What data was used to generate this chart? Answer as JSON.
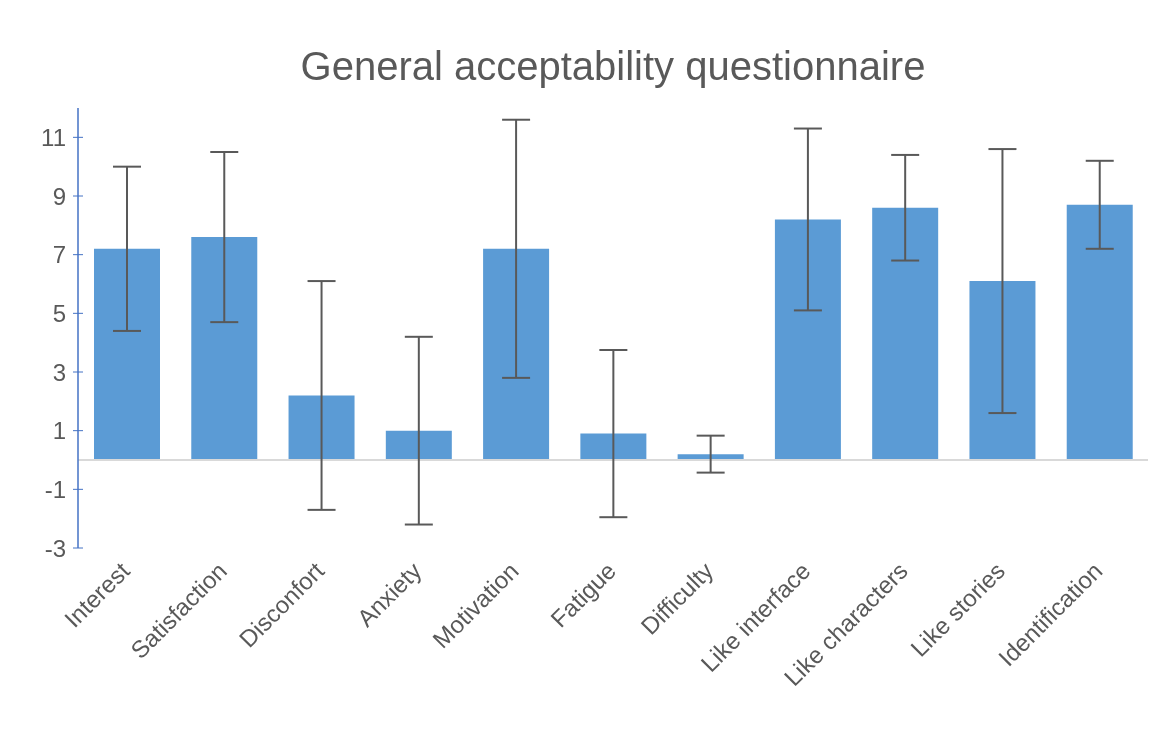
{
  "chart_data": {
    "type": "bar",
    "title": "General acceptability questionnaire",
    "categories": [
      "Interest",
      "Satisfaction",
      "Disconfort",
      "Anxiety",
      "Motivation",
      "Fatigue",
      "Difficulty",
      "Like interface",
      "Like characters",
      "Like stories",
      "Identification"
    ],
    "values": [
      7.2,
      7.6,
      2.2,
      1.0,
      7.2,
      0.9,
      0.2,
      8.2,
      8.6,
      6.1,
      8.7
    ],
    "errors": [
      2.8,
      2.9,
      3.9,
      3.2,
      4.4,
      2.85,
      0.63,
      3.1,
      1.8,
      4.5,
      1.5
    ],
    "color": "#5b9bd5",
    "ylim": [
      -3,
      12
    ],
    "yticks": [
      -3,
      -1,
      1,
      3,
      5,
      7,
      9,
      11
    ],
    "grid": false,
    "legend": false
  }
}
